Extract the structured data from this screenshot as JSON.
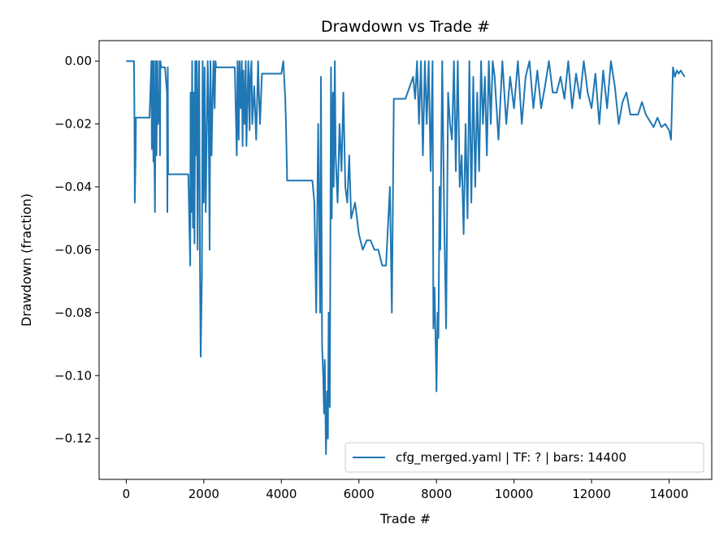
{
  "chart_data": {
    "type": "line",
    "title": "Drawdown vs Trade #",
    "xlabel": "Trade #",
    "ylabel": "Drawdown (fraction)",
    "xlim": [
      -700,
      15100
    ],
    "ylim": [
      -0.133,
      0.0065
    ],
    "xticks": [
      0,
      2000,
      4000,
      6000,
      8000,
      10000,
      12000,
      14000
    ],
    "xtick_labels": [
      "0",
      "2000",
      "4000",
      "6000",
      "8000",
      "10000",
      "12000",
      "14000"
    ],
    "yticks": [
      0.0,
      -0.02,
      -0.04,
      -0.06,
      -0.08,
      -0.1,
      -0.12
    ],
    "ytick_labels": [
      "0.00",
      "−0.02",
      "−0.04",
      "−0.06",
      "−0.08",
      "−0.10",
      "−0.12"
    ],
    "grid": false,
    "legend_position": "bottom-right",
    "colors": {
      "series": "#1f77b4"
    },
    "series": [
      {
        "name": "cfg_merged.yaml | TF: ? | bars: 14400",
        "x": [
          0,
          100,
          200,
          210,
          220,
          240,
          250,
          300,
          500,
          600,
          650,
          660,
          680,
          700,
          710,
          720,
          740,
          760,
          780,
          800,
          820,
          850,
          860,
          870,
          880,
          900,
          950,
          1000,
          1050,
          1060,
          1070,
          1080,
          1100,
          1120,
          1400,
          1600,
          1650,
          1660,
          1680,
          1700,
          1720,
          1740,
          1760,
          1780,
          1800,
          1820,
          1840,
          1860,
          1880,
          1900,
          1920,
          1950,
          1970,
          2000,
          2020,
          2050,
          2100,
          2120,
          2150,
          2170,
          2200,
          2230,
          2250,
          2280,
          2300,
          2320,
          2350,
          2400,
          2500,
          2600,
          2700,
          2800,
          2850,
          2870,
          2900,
          2920,
          2950,
          2980,
          3000,
          3020,
          3050,
          3080,
          3100,
          3130,
          3150,
          3180,
          3200,
          3230,
          3250,
          3300,
          3350,
          3400,
          3420,
          3450,
          3500,
          3600,
          3700,
          3800,
          3900,
          4000,
          4050,
          4100,
          4120,
          4150,
          4200,
          4300,
          4400,
          4500,
          4600,
          4700,
          4800,
          4850,
          4900,
          4950,
          5000,
          5020,
          5050,
          5080,
          5100,
          5120,
          5150,
          5180,
          5200,
          5220,
          5250,
          5280,
          5300,
          5330,
          5350,
          5380,
          5400,
          5450,
          5500,
          5550,
          5600,
          5650,
          5700,
          5750,
          5800,
          5900,
          6000,
          6100,
          6200,
          6300,
          6400,
          6500,
          6600,
          6700,
          6800,
          6850,
          6900,
          6950,
          7000,
          7200,
          7400,
          7450,
          7500,
          7550,
          7600,
          7650,
          7700,
          7750,
          7800,
          7850,
          7900,
          7920,
          7950,
          7980,
          8000,
          8030,
          8050,
          8080,
          8100,
          8150,
          8200,
          8250,
          8300,
          8350,
          8400,
          8450,
          8500,
          8550,
          8600,
          8650,
          8700,
          8750,
          8800,
          8850,
          8900,
          8950,
          9000,
          9050,
          9100,
          9150,
          9200,
          9250,
          9300,
          9350,
          9400,
          9450,
          9500,
          9600,
          9700,
          9800,
          9900,
          10000,
          10100,
          10200,
          10300,
          10400,
          10500,
          10600,
          10700,
          10800,
          10900,
          11000,
          11100,
          11200,
          11300,
          11400,
          11500,
          11600,
          11700,
          11800,
          11900,
          12000,
          12100,
          12200,
          12300,
          12400,
          12500,
          12600,
          12700,
          12800,
          12900,
          13000,
          13100,
          13200,
          13300,
          13400,
          13500,
          13600,
          13700,
          13800,
          13900,
          14000,
          14050,
          14100,
          14150,
          14200,
          14250,
          14300,
          14350,
          14400
        ],
        "y": [
          0.0,
          0.0,
          0.0,
          -0.015,
          -0.045,
          -0.03,
          -0.018,
          -0.018,
          -0.018,
          -0.018,
          0.0,
          -0.028,
          0.0,
          -0.032,
          0.0,
          -0.025,
          -0.048,
          0.0,
          -0.03,
          0.0,
          -0.02,
          -0.015,
          0.0,
          -0.03,
          0.0,
          -0.002,
          -0.002,
          -0.002,
          -0.01,
          -0.048,
          -0.002,
          -0.036,
          -0.036,
          -0.036,
          -0.036,
          -0.036,
          -0.065,
          -0.01,
          -0.048,
          0.0,
          -0.053,
          -0.01,
          -0.058,
          0.0,
          -0.03,
          0.0,
          -0.06,
          -0.015,
          0.0,
          -0.065,
          -0.094,
          -0.068,
          0.0,
          -0.045,
          -0.002,
          -0.048,
          0.0,
          -0.012,
          -0.06,
          0.0,
          -0.03,
          -0.01,
          0.0,
          -0.015,
          0.0,
          -0.002,
          -0.002,
          -0.002,
          -0.002,
          -0.002,
          -0.002,
          -0.002,
          -0.03,
          0.0,
          -0.025,
          0.0,
          -0.015,
          0.0,
          -0.027,
          -0.003,
          -0.02,
          0.0,
          -0.027,
          -0.01,
          0.0,
          -0.022,
          -0.005,
          0.0,
          -0.02,
          -0.008,
          -0.025,
          0.0,
          -0.01,
          -0.02,
          -0.004,
          -0.004,
          -0.004,
          -0.004,
          -0.004,
          -0.004,
          0.0,
          -0.012,
          -0.02,
          -0.038,
          -0.038,
          -0.038,
          -0.038,
          -0.038,
          -0.038,
          -0.038,
          -0.038,
          -0.045,
          -0.08,
          -0.02,
          -0.08,
          -0.005,
          -0.09,
          -0.1,
          -0.112,
          -0.095,
          -0.125,
          -0.105,
          -0.12,
          -0.08,
          -0.11,
          -0.002,
          -0.05,
          -0.01,
          -0.04,
          0.0,
          -0.03,
          -0.045,
          -0.02,
          -0.035,
          -0.01,
          -0.04,
          -0.045,
          -0.03,
          -0.05,
          -0.045,
          -0.055,
          -0.06,
          -0.057,
          -0.057,
          -0.06,
          -0.06,
          -0.065,
          -0.065,
          -0.04,
          -0.08,
          -0.012,
          -0.012,
          -0.012,
          -0.012,
          -0.005,
          -0.012,
          0.0,
          -0.02,
          0.0,
          -0.03,
          0.0,
          -0.02,
          0.0,
          -0.035,
          0.0,
          -0.085,
          -0.072,
          -0.09,
          -0.105,
          -0.08,
          -0.088,
          -0.04,
          -0.06,
          0.0,
          -0.05,
          -0.085,
          -0.01,
          -0.02,
          -0.025,
          0.0,
          -0.035,
          0.0,
          -0.04,
          -0.03,
          -0.055,
          -0.02,
          -0.05,
          0.0,
          -0.045,
          -0.005,
          -0.04,
          -0.01,
          -0.035,
          0.0,
          -0.02,
          -0.005,
          -0.03,
          0.0,
          -0.02,
          0.0,
          -0.005,
          -0.025,
          0.0,
          -0.02,
          -0.005,
          -0.015,
          0.0,
          -0.02,
          -0.005,
          0.0,
          -0.015,
          -0.003,
          -0.015,
          -0.008,
          0.0,
          -0.01,
          -0.01,
          -0.005,
          -0.012,
          0.0,
          -0.015,
          -0.004,
          -0.012,
          0.0,
          -0.01,
          -0.015,
          -0.004,
          -0.02,
          -0.003,
          -0.015,
          0.0,
          -0.008,
          -0.02,
          -0.013,
          -0.01,
          -0.017,
          -0.017,
          -0.017,
          -0.013,
          -0.017,
          -0.019,
          -0.021,
          -0.018,
          -0.021,
          -0.02,
          -0.022,
          -0.025,
          -0.002,
          -0.005,
          -0.003,
          -0.004,
          -0.003,
          -0.004,
          -0.005
        ]
      }
    ]
  }
}
